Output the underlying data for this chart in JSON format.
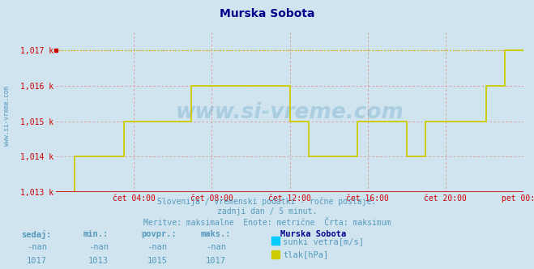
{
  "title": "Murska Sobota",
  "title_color": "#00008B",
  "bg_color": "#d0e4f0",
  "plot_bg_color": "#d0e4f0",
  "xlabel_ticks": [
    "čet 04:00",
    "čet 08:00",
    "čet 12:00",
    "čet 16:00",
    "čet 20:00",
    "pet 00:00"
  ],
  "xlabel_tick_positions": [
    0.1667,
    0.3333,
    0.5,
    0.6667,
    0.8333,
    1.0
  ],
  "ylim": [
    1013.0,
    1017.5
  ],
  "yticks": [
    1013,
    1014,
    1015,
    1016,
    1017
  ],
  "ytick_labels": [
    "1,013 k",
    "1,014 k",
    "1,015 k",
    "1,016 k",
    "1,017 k"
  ],
  "grid_color": "#e09090",
  "axis_color": "#cc0000",
  "watermark": "www.si-vreme.com",
  "subtitle1": "Slovenija / vremenski podatki - ročne postaje.",
  "subtitle2": "zadnji dan / 5 minut.",
  "subtitle3": "Meritve: maksimalne  Enote: metrične  Črta: maksimum",
  "subtitle_color": "#5599bb",
  "legend_title": "Murska Sobota",
  "legend_title_color": "#00008B",
  "legend_items": [
    {
      "label": "sunki vetra[m/s]",
      "color": "#00ccff"
    },
    {
      "label": "tlak[hPa]",
      "color": "#cccc00"
    }
  ],
  "table_headers": [
    "sedaj:",
    "min.:",
    "povpr.:",
    "maks.:"
  ],
  "table_row1": [
    "-nan",
    "-nan",
    "-nan",
    "-nan"
  ],
  "table_row2": [
    "1017",
    "1013",
    "1015",
    "1017"
  ],
  "table_color": "#5599bb",
  "tlak_x": [
    0.0,
    0.04,
    0.04,
    0.145,
    0.145,
    0.29,
    0.29,
    0.5,
    0.5,
    0.54,
    0.54,
    0.645,
    0.645,
    0.75,
    0.75,
    0.79,
    0.79,
    0.92,
    0.92,
    0.96,
    0.96,
    1.0
  ],
  "tlak_y": [
    1013.0,
    1013.0,
    1014.0,
    1014.0,
    1015.0,
    1015.0,
    1016.0,
    1016.0,
    1015.0,
    1015.0,
    1014.0,
    1014.0,
    1015.0,
    1015.0,
    1014.0,
    1014.0,
    1015.0,
    1015.0,
    1016.0,
    1016.0,
    1017.0,
    1017.0
  ],
  "tlak_color": "#cccc00",
  "max_line_y": 1017.0,
  "max_line_color": "#cccc00"
}
